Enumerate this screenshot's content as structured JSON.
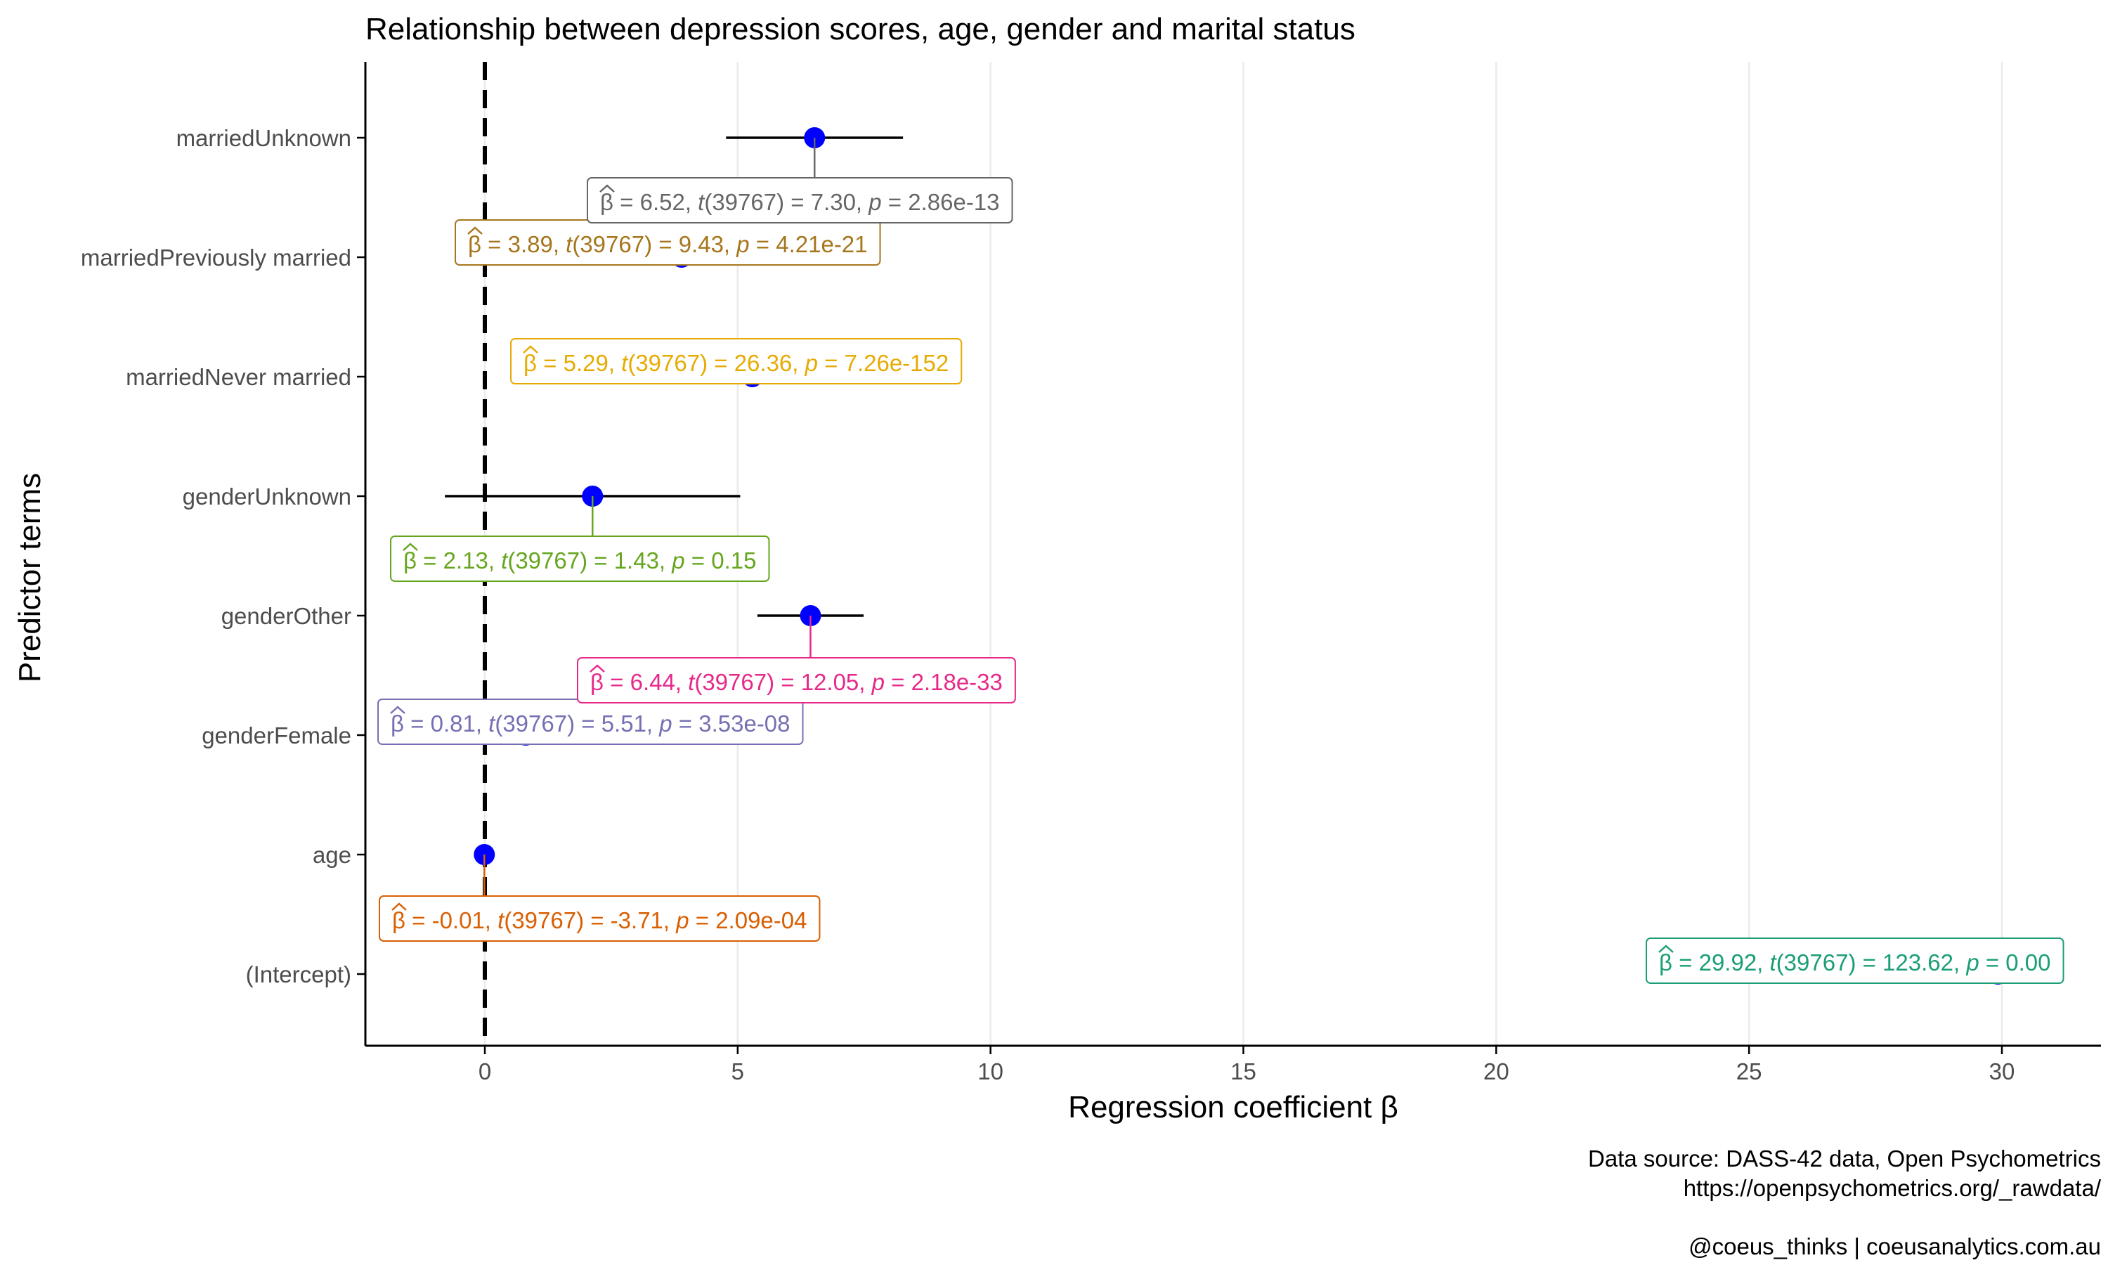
{
  "chart_data": {
    "type": "scatter",
    "subtype": "coefficient-plot",
    "title": "Relationship between depression scores, age, gender and marital status",
    "xlabel": "Regression coefficient β",
    "ylabel": "Predictor terms",
    "xlim": [
      -2.4,
      32.0
    ],
    "x_ticks": [
      0,
      5,
      10,
      15,
      20,
      25,
      30
    ],
    "x_tick_labels": [
      "0",
      "5",
      "10",
      "15",
      "20",
      "25",
      "30"
    ],
    "reference_line_x": 0,
    "grid": {
      "major_x": true,
      "major_y": false
    },
    "point_color": "#0000ff",
    "categories": [
      "(Intercept)",
      "age",
      "genderFemale",
      "genderOther",
      "genderUnknown",
      "marriedNever married",
      "marriedPreviously married",
      "marriedUnknown"
    ],
    "terms": [
      {
        "term": "(Intercept)",
        "estimate": 29.92,
        "ci": [
          29.45,
          30.39
        ],
        "color": "#1b9e77",
        "beta": "29.92",
        "df": "39767",
        "t": "123.62",
        "p": "0.00"
      },
      {
        "term": "age",
        "estimate": -0.01,
        "ci": [
          -0.02,
          0.0
        ],
        "color": "#d95f02",
        "beta": "-0.01",
        "df": "39767",
        "t": "-3.71",
        "p": "2.09e-04"
      },
      {
        "term": "genderFemale",
        "estimate": 0.81,
        "ci": [
          0.52,
          1.1
        ],
        "color": "#7570b3",
        "beta": "0.81",
        "df": "39767",
        "t": "5.51",
        "p": "3.53e-08"
      },
      {
        "term": "genderOther",
        "estimate": 6.44,
        "ci": [
          5.39,
          7.49
        ],
        "color": "#e7298a",
        "beta": "6.44",
        "df": "39767",
        "t": "12.05",
        "p": "2.18e-33"
      },
      {
        "term": "genderUnknown",
        "estimate": 2.13,
        "ci": [
          -0.79,
          5.05
        ],
        "color": "#66a61e",
        "beta": "2.13",
        "df": "39767",
        "t": "1.43",
        "p": "0.15"
      },
      {
        "term": "marriedNever married",
        "estimate": 5.29,
        "ci": [
          4.9,
          5.68
        ],
        "color": "#e6ab02",
        "beta": "5.29",
        "df": "39767",
        "t": "26.36",
        "p": "7.26e-152"
      },
      {
        "term": "marriedPreviously married",
        "estimate": 3.89,
        "ci": [
          3.08,
          4.7
        ],
        "color": "#a6761d",
        "beta": "3.89",
        "df": "39767",
        "t": "9.43",
        "p": "4.21e-21"
      },
      {
        "term": "marriedUnknown",
        "estimate": 6.52,
        "ci": [
          4.77,
          8.27
        ],
        "color": "#666666",
        "beta": "6.52",
        "df": "39767",
        "t": "7.30",
        "p": "2.86e-13"
      }
    ],
    "caption_lines": [
      "Data source: DASS-42 data, Open Psychometrics",
      "https://openpsychometrics.org/_rawdata/",
      "@coeus_thinks | coeusanalytics.com.au"
    ]
  }
}
